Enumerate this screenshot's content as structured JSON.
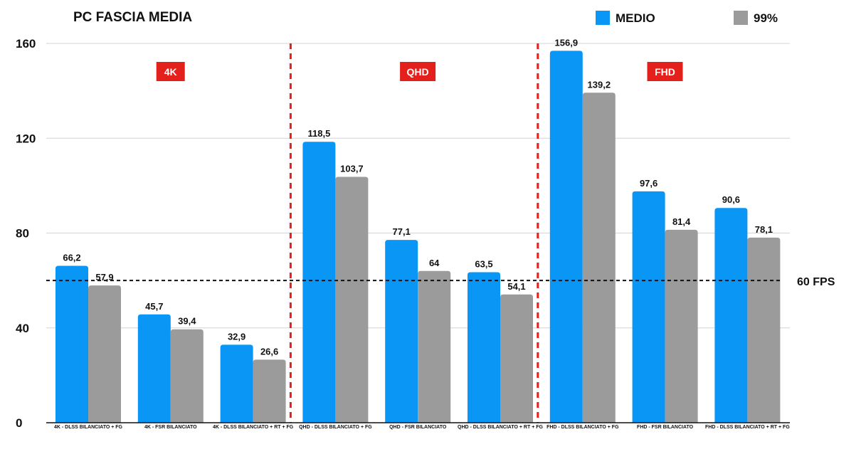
{
  "chart_data": {
    "type": "bar",
    "title": "PC FASCIA MEDIA",
    "categories": [
      "4K - DLSS BILANCIATO + FG",
      "4K - FSR BILANCIATO",
      "4K - DLSS BILANCIATO + RT + FG",
      "QHD - DLSS BILANCIATO + FG",
      "QHD - FSR BILANCIATO",
      "QHD - DLSS BILANCIATO + RT + FG",
      "FHD - DLSS BILANCIATO + FG",
      "FHD - FSR BILANCIATO",
      "FHD - DLSS BILANCIATO + RT + FG"
    ],
    "series": [
      {
        "name": "MEDIO",
        "color": "#0a96f5",
        "values": [
          66.2,
          45.7,
          32.9,
          118.5,
          77.1,
          63.5,
          156.9,
          97.6,
          90.6
        ],
        "labels": [
          "66,2",
          "45,7",
          "32,9",
          "118,5",
          "77,1",
          "63,5",
          "156,9",
          "97,6",
          "90,6"
        ]
      },
      {
        "name": "99%",
        "color": "#9b9b9b",
        "values": [
          57.9,
          39.4,
          26.6,
          103.7,
          64,
          54.1,
          139.2,
          81.4,
          78.1
        ],
        "labels": [
          "57,9",
          "39,4",
          "26,6",
          "103,7",
          "64",
          "54,1",
          "139,2",
          "81,4",
          "78,1"
        ]
      }
    ],
    "ylim": [
      0,
      160
    ],
    "yticks": [
      0,
      40,
      80,
      120,
      160
    ],
    "grid": true,
    "legend": "top-right",
    "sections": [
      {
        "label": "4K",
        "first": 0,
        "last": 2
      },
      {
        "label": "QHD",
        "first": 3,
        "last": 5
      },
      {
        "label": "FHD",
        "first": 6,
        "last": 8
      }
    ],
    "section_color": "#e3201b",
    "reference_line": {
      "value": 60,
      "label": "60 FPS"
    }
  }
}
